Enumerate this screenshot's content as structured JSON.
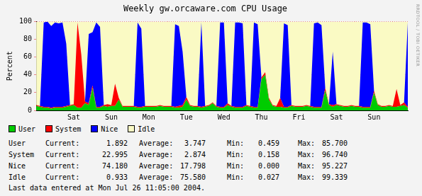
{
  "chart_data": {
    "type": "line",
    "title": "Weekly gw.orcaware.com CPU Usage",
    "y_label": "Percent",
    "categories": [
      null,
      null,
      null,
      null,
      null,
      null,
      null,
      null,
      null,
      null,
      "Sat",
      null,
      null,
      null,
      null,
      null,
      null,
      null,
      null,
      null,
      "Sun",
      null,
      null,
      null,
      null,
      null,
      null,
      null,
      null,
      null,
      "Mon",
      null,
      null,
      null,
      null,
      null,
      null,
      null,
      null,
      null,
      "Tue",
      null,
      null,
      null,
      null,
      null,
      null,
      null,
      null,
      null,
      "Wed",
      null,
      null,
      null,
      null,
      null,
      null,
      null,
      null,
      null,
      "Thu",
      null,
      null,
      null,
      null,
      null,
      null,
      null,
      null,
      null,
      "Fri",
      null,
      null,
      null,
      null,
      null,
      null,
      null,
      null,
      null,
      "Sat",
      null,
      null,
      null,
      null,
      null,
      null,
      null,
      null,
      null,
      "Sun",
      null,
      null,
      null,
      null,
      null,
      null,
      null,
      null,
      null
    ],
    "series": [
      {
        "name": "User",
        "color": "#00cc00",
        "values": [
          5,
          4,
          3,
          3,
          2,
          3,
          3,
          3,
          4,
          5,
          6,
          3,
          3,
          8,
          6,
          25,
          3,
          3,
          5,
          4,
          5,
          5,
          12,
          4,
          4,
          4,
          4,
          3,
          3,
          4,
          4,
          4,
          4,
          5,
          4,
          4,
          4,
          3,
          3,
          4,
          12,
          5,
          4,
          4,
          3,
          4,
          5,
          8,
          4,
          3,
          3,
          6,
          4,
          3,
          3,
          3,
          5,
          4,
          3,
          3,
          35,
          40,
          12,
          5,
          4,
          4,
          3,
          3,
          5,
          4,
          4,
          4,
          5,
          4,
          3,
          3,
          3,
          22,
          6,
          4,
          6,
          5,
          4,
          4,
          5,
          4,
          4,
          3,
          3,
          3,
          20,
          6,
          4,
          4,
          5,
          4,
          4,
          5,
          6,
          3
        ]
      },
      {
        "name": "System",
        "color": "#ff0000",
        "values": [
          1,
          1,
          1,
          1,
          1,
          1,
          1,
          1,
          1,
          1,
          1,
          96,
          60,
          2,
          2,
          3,
          1,
          1,
          1,
          3,
          1,
          25,
          2,
          1,
          1,
          1,
          1,
          1,
          1,
          1,
          1,
          1,
          1,
          1,
          1,
          1,
          1,
          1,
          2,
          2,
          3,
          1,
          1,
          1,
          1,
          1,
          1,
          1,
          1,
          1,
          1,
          2,
          1,
          1,
          1,
          1,
          1,
          1,
          1,
          1,
          2,
          3,
          2,
          1,
          1,
          10,
          1,
          1,
          1,
          1,
          1,
          1,
          1,
          1,
          1,
          1,
          1,
          3,
          1,
          2,
          1,
          1,
          1,
          1,
          1,
          1,
          1,
          1,
          1,
          1,
          2,
          1,
          1,
          1,
          1,
          1,
          20,
          1,
          3,
          1
        ]
      },
      {
        "name": "Nice",
        "color": "#0000ff",
        "values": [
          0,
          0,
          95,
          96,
          92,
          95,
          94,
          95,
          70,
          0,
          0,
          0,
          0,
          0,
          78,
          60,
          95,
          90,
          0,
          0,
          0,
          0,
          0,
          0,
          0,
          0,
          0,
          95,
          88,
          0,
          0,
          0,
          0,
          0,
          0,
          0,
          0,
          93,
          90,
          60,
          0,
          0,
          0,
          0,
          95,
          0,
          0,
          0,
          0,
          95,
          95,
          0,
          0,
          95,
          95,
          94,
          0,
          0,
          95,
          93,
          0,
          0,
          0,
          0,
          0,
          0,
          94,
          92,
          0,
          0,
          0,
          0,
          0,
          0,
          94,
          95,
          92,
          0,
          0,
          60,
          0,
          0,
          0,
          0,
          0,
          0,
          0,
          95,
          95,
          93,
          0,
          0,
          0,
          0,
          0,
          0,
          0,
          0,
          0,
          95
        ]
      },
      {
        "name": "Idle",
        "color": "#fafac4",
        "values": [
          94,
          95,
          1,
          0,
          5,
          1,
          2,
          1,
          25,
          94,
          93,
          1,
          37,
          90,
          14,
          12,
          1,
          6,
          94,
          93,
          94,
          70,
          86,
          95,
          95,
          95,
          95,
          1,
          8,
          95,
          95,
          95,
          95,
          94,
          95,
          95,
          95,
          3,
          5,
          34,
          85,
          94,
          95,
          95,
          1,
          95,
          94,
          91,
          95,
          1,
          1,
          92,
          95,
          1,
          1,
          2,
          94,
          95,
          1,
          3,
          63,
          57,
          86,
          94,
          95,
          86,
          2,
          4,
          94,
          95,
          95,
          95,
          94,
          95,
          2,
          1,
          4,
          75,
          93,
          34,
          93,
          94,
          95,
          95,
          94,
          95,
          95,
          1,
          1,
          3,
          78,
          93,
          95,
          95,
          94,
          95,
          76,
          94,
          91,
          1
        ]
      }
    ],
    "ylim": [
      0,
      100
    ],
    "yticks": [
      0,
      20,
      40,
      60,
      80,
      100
    ],
    "grid": true,
    "stacked": true,
    "legend": "bottom"
  },
  "stats": {
    "columns": [
      "Current:",
      "Average:",
      "Min:",
      "Max:"
    ],
    "rows": [
      {
        "name": "User",
        "values": [
          "1.892",
          "3.747",
          "0.459",
          "85.700"
        ]
      },
      {
        "name": "System",
        "values": [
          "22.995",
          "2.874",
          "0.158",
          "96.740"
        ]
      },
      {
        "name": "Nice",
        "values": [
          "74.180",
          "17.798",
          "0.000",
          "95.227"
        ]
      },
      {
        "name": "Idle",
        "values": [
          "0.933",
          "75.580",
          "0.027",
          "99.339"
        ]
      }
    ]
  },
  "footer": "Last data entered at Mon Jul 26 11:05:00 2004.",
  "side_text": "RRDTOOL / TOBI OETIKER"
}
